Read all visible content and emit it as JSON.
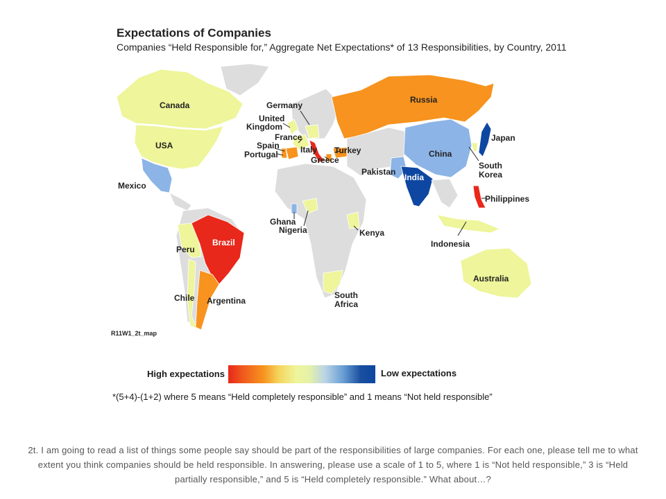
{
  "title": "Expectations of Companies",
  "subtitle": "Companies “Held Responsible for,” Aggregate Net Expectations* of 13 Responsibilities, by Country, 2011",
  "map_code": "R11W1_2t_map",
  "legend": {
    "high_label": "High expectations",
    "low_label": "Low expectations",
    "colors": [
      "#e8281a",
      "#f7931e",
      "#eef59a",
      "#6a9fd4",
      "#0d47a1"
    ]
  },
  "footnote": "*(5+4)-(1+2) where 5 means “Held completely responsible” and 1 means “Not held responsible”",
  "question": "2t. I am going to read a list of things some people say should be part of the responsibilities of large companies. For each one, please tell me to what extent you think companies should be held responsible. In answering, please use a scale of 1 to 5, where 1 is “Not held responsible,” 3 is “Held partially responsible,” and 5 is “Held completely responsible.” What about…?",
  "countries": {
    "canada": "Canada",
    "usa": "USA",
    "mexico": "Mexico",
    "germany": "Germany",
    "uk_line1": "United",
    "uk_line2": "Kingdom",
    "france": "France",
    "spain": "Spain",
    "portugal": "Portugal",
    "italy": "Italy",
    "turkey": "Turkey",
    "greece": "Greece",
    "russia": "Russia",
    "china": "China",
    "japan": "Japan",
    "south_korea_line1": "South",
    "south_korea_line2": "Korea",
    "pakistan": "Pakistan",
    "india": "India",
    "philippines": "Philippines",
    "ghana": "Ghana",
    "nigeria": "Nigeria",
    "kenya": "Kenya",
    "indonesia": "Indonesia",
    "brazil": "Brazil",
    "peru": "Peru",
    "chile": "Chile",
    "argentina": "Argentina",
    "south_africa_line1": "South",
    "south_africa_line2": "Africa",
    "australia": "Australia"
  },
  "country_colors": {
    "canada": "#eef59a",
    "usa": "#eef59a",
    "mexico": "#8cb4e6",
    "germany": "#eef59a",
    "uk": "#eef59a",
    "france": "#eef59a",
    "spain": "#f7931e",
    "portugal": "#f7931e",
    "italy": "#e8281a",
    "turkey": "#f7931e",
    "greece": "#f7931e",
    "russia": "#f7931e",
    "china": "#8cb4e6",
    "japan": "#0d47a1",
    "south_korea": "#eef59a",
    "pakistan": "#8cb4e6",
    "india": "#0d47a1",
    "philippines": "#e8281a",
    "ghana": "#8cb4e6",
    "nigeria": "#eef59a",
    "kenya": "#eef59a",
    "indonesia": "#eef59a",
    "brazil": "#e8281a",
    "peru": "#eef59a",
    "chile": "#eef59a",
    "argentina": "#f7931e",
    "south_africa": "#eef59a",
    "australia": "#eef59a",
    "no_data": "#dddddd"
  }
}
